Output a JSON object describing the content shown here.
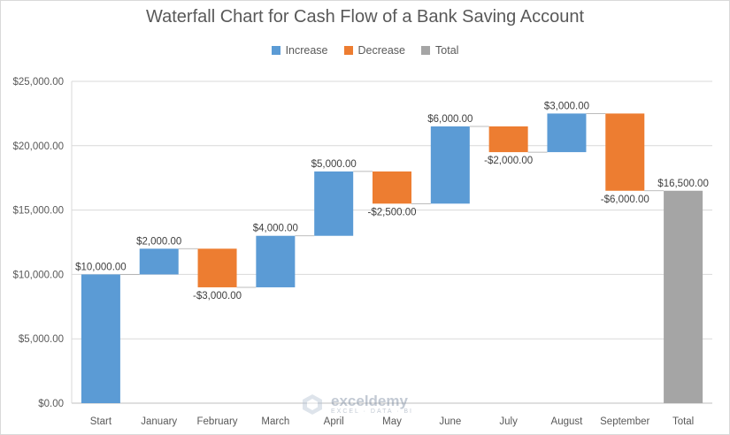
{
  "chart_data": {
    "type": "waterfall",
    "title": "Waterfall Chart for Cash Flow of a Bank Saving Account",
    "categories": [
      "Start",
      "January",
      "February",
      "March",
      "April",
      "May",
      "June",
      "July",
      "August",
      "September",
      "Total"
    ],
    "values": [
      10000,
      2000,
      -3000,
      4000,
      5000,
      -2500,
      6000,
      -2000,
      3000,
      -6000,
      16500
    ],
    "kinds": [
      "increase",
      "increase",
      "decrease",
      "increase",
      "increase",
      "decrease",
      "increase",
      "decrease",
      "increase",
      "decrease",
      "total"
    ],
    "data_labels": [
      "$10,000.00",
      "$2,000.00",
      "-$3,000.00",
      "$4,000.00",
      "$5,000.00",
      "-$2,500.00",
      "$6,000.00",
      "-$2,000.00",
      "$3,000.00",
      "-$6,000.00",
      "$16,500.00"
    ],
    "yticks": [
      0,
      5000,
      10000,
      15000,
      20000,
      25000
    ],
    "ytick_labels": [
      "$0.00",
      "$5,000.00",
      "$10,000.00",
      "$15,000.00",
      "$20,000.00",
      "$25,000.00"
    ],
    "ylim": [
      0,
      25000
    ],
    "legend": [
      {
        "key": "increase",
        "label": "Increase",
        "color": "#5b9bd5"
      },
      {
        "key": "decrease",
        "label": "Decrease",
        "color": "#ed7d31"
      },
      {
        "key": "total",
        "label": "Total",
        "color": "#a5a5a5"
      }
    ],
    "legend_position": "top",
    "grid": true
  },
  "watermark": {
    "name": "exceldemy",
    "tagline": "EXCEL · DATA · BI"
  }
}
